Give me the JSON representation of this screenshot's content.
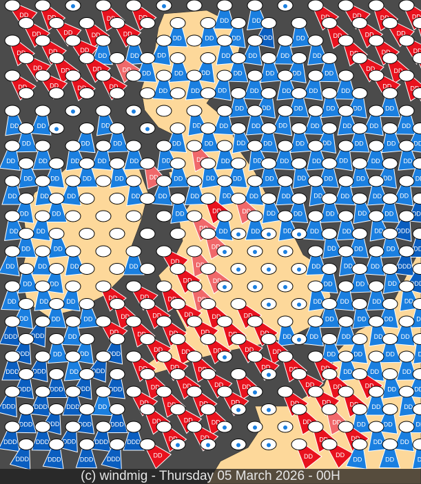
{
  "footer": {
    "text": "(c) windmig - Thursday 05 March 2026 - 00H"
  },
  "colors": {
    "sea": "#4b4b4b",
    "land": "#fdd89a",
    "red": "#e8121e",
    "dark_red": "#c0000f",
    "pink": "#f0686a",
    "blue": "#1a7fe0",
    "light_blue": "#4aa0f0",
    "dark_blue": "#0a5ec0",
    "oval": "#ffffff"
  },
  "legend_codes": {
    "r": "DD",
    "p": "DD",
    "b": "DD",
    "d": "DDD",
    "o": "",
    "w": "drop"
  },
  "stations": [
    "rrwrrwobbwrrrr",
    "rrrrobbbdbrrrr",
    "rrrbbbobbbbrrr",
    "rrrpbbbbbbbrrr",
    "rrrrobbbbbbbrr",
    "ooooooobbbbbbr",
    "bbwbwobbbbbbbb",
    "bwbbwbbbbbbbbb",
    "bbbbbbpbbbbbbb",
    "bbbbpbbbbbbbbb",
    "bbbobbbbbbbbbb",
    "bbooobrpbbbbbd",
    "bboooopbbbbbbd",
    "bboooopwwwbbbd",
    "bbbobrpwwwbbbd",
    "bbooorpwwwbbbd",
    "bbbrrrpwwwbbbb",
    "bbbrrrrrwwbbbb",
    "ddbrrrrrrbbbbb",
    "dbbdrrrrrwbbbb",
    "ddbdrrrwrrrbbb",
    "ddddrrrrwrrrbb",
    "dddbrrrrwrrrbb",
    "ddddrrrwwrpbbb",
    "dddddrrwwwrrbb",
    "ddddrwwwwrrbbb"
  ]
}
